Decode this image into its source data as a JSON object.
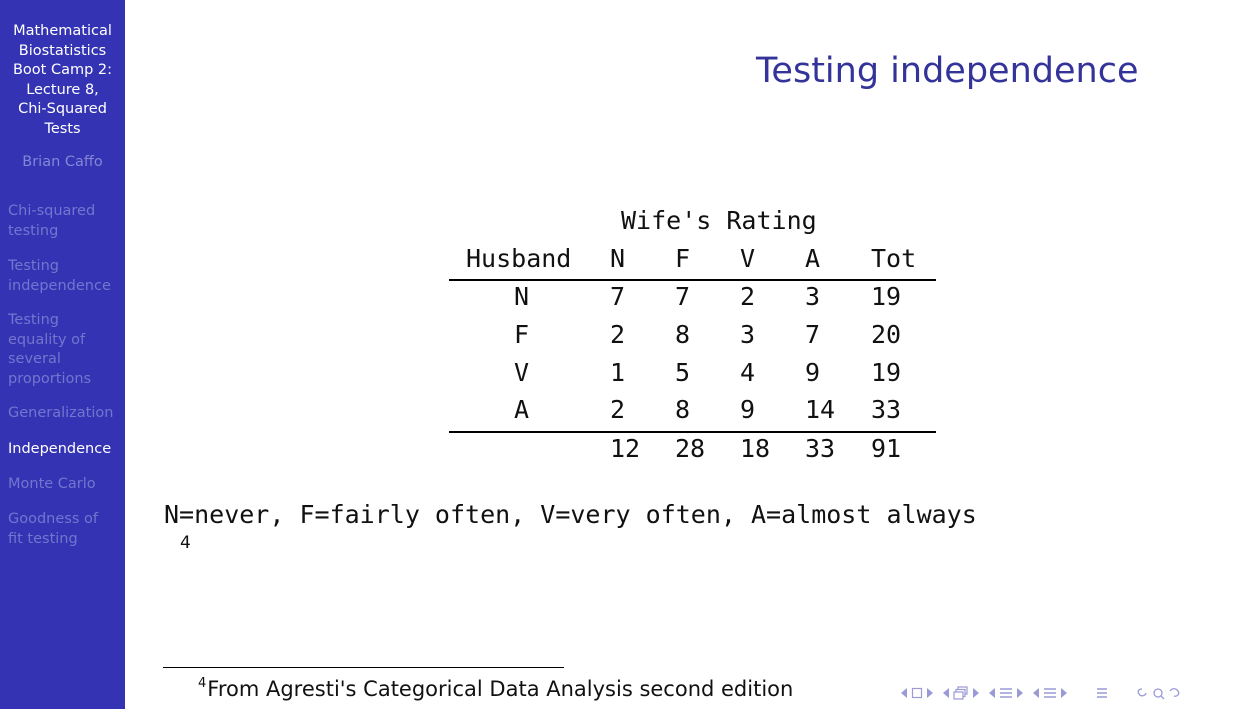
{
  "sidebar": {
    "title": "Mathematical\nBiostatistics\nBoot Camp 2:\nLecture 8,\nChi-Squared\nTests",
    "author": "Brian Caffo",
    "items": [
      {
        "label": "Chi-squared\ntesting",
        "active": false
      },
      {
        "label": "Testing\nindependence",
        "active": false
      },
      {
        "label": "Testing\nequality of\nseveral\nproportions",
        "active": false
      },
      {
        "label": "Generalization",
        "active": false
      },
      {
        "label": "Independence",
        "active": true
      },
      {
        "label": "Monte Carlo",
        "active": false
      },
      {
        "label": "Goodness of\nfit testing",
        "active": false
      }
    ]
  },
  "slide": {
    "title": "Testing independence",
    "table": {
      "caption": "Wife's Rating",
      "headers": [
        "Husband",
        "N",
        "F",
        "V",
        "A",
        "Tot"
      ],
      "rows": [
        [
          "N",
          "7",
          "7",
          "2",
          "3",
          "19"
        ],
        [
          "F",
          "2",
          "8",
          "3",
          "7",
          "20"
        ],
        [
          "V",
          "1",
          "5",
          "4",
          "9",
          "19"
        ],
        [
          "A",
          "2",
          "8",
          "9",
          "14",
          "33"
        ]
      ],
      "totals": [
        "",
        "12",
        "28",
        "18",
        "33",
        "91"
      ]
    },
    "legend": "N=never, F=fairly often, V=very often, A=almost always",
    "legend_footnote_mark": "4",
    "footnote": {
      "mark": "4",
      "text": "From Agresti's Categorical Data Analysis second edition"
    }
  },
  "colors": {
    "sidebar_bg": "#3333b3",
    "title_color": "#33339a",
    "nav_inactive": "#7575cf"
  },
  "nav_icons": [
    "frame-prev-icon",
    "frame-next-icon",
    "subsection-prev-icon",
    "subsection-next-icon",
    "section-prev-icon",
    "section-next-icon",
    "subsubsection-prev-icon",
    "subsubsection-next-icon",
    "align-icon",
    "search-icon"
  ]
}
